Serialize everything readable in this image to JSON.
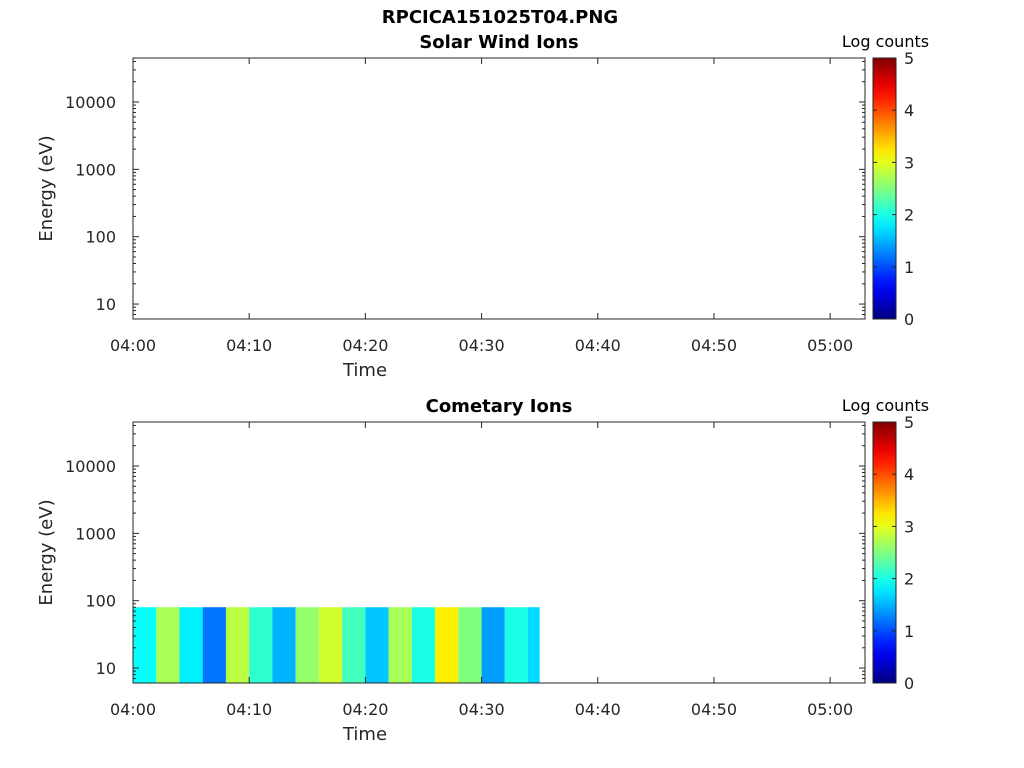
{
  "figure": {
    "title": "RPCICA151025T04.PNG"
  },
  "chart_data": [
    {
      "type": "heatmap",
      "title": "Solar Wind Ions",
      "xlabel": "Time",
      "ylabel": "Energy (eV)",
      "x_ticks": [
        "04:00",
        "04:10",
        "04:20",
        "04:30",
        "04:40",
        "04:50",
        "05:00"
      ],
      "x_range": [
        "04:00",
        "05:03"
      ],
      "y_scale": "log",
      "y_ticks": [
        "10",
        "100",
        "1000",
        "10000"
      ],
      "y_range": [
        6,
        45000
      ],
      "colorbar": {
        "label": "Log counts",
        "ticks": [
          "0",
          "1",
          "2",
          "3",
          "4",
          "5"
        ],
        "range": [
          0,
          5
        ],
        "colormap": "jet"
      },
      "blocks": []
    },
    {
      "type": "heatmap",
      "title": "Cometary Ions",
      "xlabel": "Time",
      "ylabel": "Energy (eV)",
      "x_ticks": [
        "04:00",
        "04:10",
        "04:20",
        "04:30",
        "04:40",
        "04:50",
        "05:00"
      ],
      "x_range": [
        "04:00",
        "05:03"
      ],
      "y_scale": "log",
      "y_ticks": [
        "10",
        "100",
        "1000",
        "10000"
      ],
      "y_range": [
        6,
        45000
      ],
      "colorbar": {
        "label": "Log counts",
        "ticks": [
          "0",
          "1",
          "2",
          "3",
          "4",
          "5"
        ],
        "range": [
          0,
          5
        ],
        "colormap": "jet"
      },
      "blocks": [
        {
          "t0": "04:00",
          "t1": "04:02",
          "e0": 6,
          "e1": 80,
          "value": 1.9
        },
        {
          "t0": "04:02",
          "t1": "04:04",
          "e0": 6,
          "e1": 80,
          "value": 2.7
        },
        {
          "t0": "04:04",
          "t1": "04:06",
          "e0": 6,
          "e1": 80,
          "value": 1.8
        },
        {
          "t0": "04:06",
          "t1": "04:08",
          "e0": 6,
          "e1": 80,
          "value": 1.2
        },
        {
          "t0": "04:08",
          "t1": "04:10",
          "e0": 6,
          "e1": 80,
          "value": 2.8
        },
        {
          "t0": "04:10",
          "t1": "04:12",
          "e0": 6,
          "e1": 80,
          "value": 2.1
        },
        {
          "t0": "04:12",
          "t1": "04:14",
          "e0": 6,
          "e1": 80,
          "value": 1.5
        },
        {
          "t0": "04:14",
          "t1": "04:16",
          "e0": 6,
          "e1": 80,
          "value": 2.6
        },
        {
          "t0": "04:16",
          "t1": "04:18",
          "e0": 6,
          "e1": 80,
          "value": 2.9
        },
        {
          "t0": "04:18",
          "t1": "04:20",
          "e0": 6,
          "e1": 80,
          "value": 2.2
        },
        {
          "t0": "04:20",
          "t1": "04:22",
          "e0": 6,
          "e1": 80,
          "value": 1.6
        },
        {
          "t0": "04:22",
          "t1": "04:24",
          "e0": 6,
          "e1": 80,
          "value": 2.7
        },
        {
          "t0": "04:24",
          "t1": "04:26",
          "e0": 6,
          "e1": 80,
          "value": 2.0
        },
        {
          "t0": "04:26",
          "t1": "04:28",
          "e0": 6,
          "e1": 80,
          "value": 3.2
        },
        {
          "t0": "04:28",
          "t1": "04:30",
          "e0": 6,
          "e1": 80,
          "value": 2.5
        },
        {
          "t0": "04:30",
          "t1": "04:32",
          "e0": 6,
          "e1": 80,
          "value": 1.4
        },
        {
          "t0": "04:32",
          "t1": "04:34",
          "e0": 6,
          "e1": 80,
          "value": 2.0
        },
        {
          "t0": "04:34",
          "t1": "04:35",
          "e0": 6,
          "e1": 80,
          "value": 1.7
        }
      ]
    }
  ]
}
